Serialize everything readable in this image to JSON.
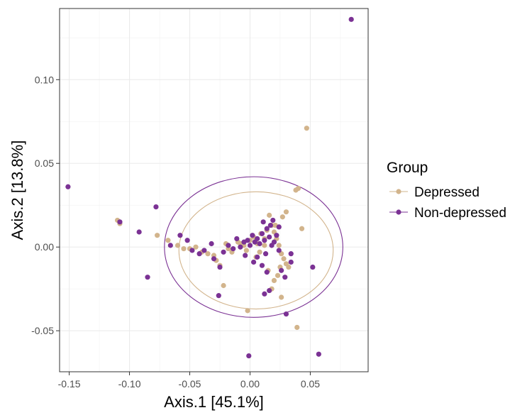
{
  "chart_data": {
    "type": "scatter",
    "xlabel": "Axis.1   [45.1%]",
    "ylabel": "Axis.2   [13.8%]",
    "xlim": [
      -0.158,
      0.098
    ],
    "ylim": [
      -0.0745,
      0.1425
    ],
    "x_ticks": [
      -0.15,
      -0.1,
      -0.05,
      0.0,
      0.05
    ],
    "x_tick_labels": [
      "-0.15",
      "-0.10",
      "-0.05",
      "0.00",
      "0.05"
    ],
    "y_ticks": [
      -0.05,
      0.0,
      0.05,
      0.1
    ],
    "y_tick_labels": [
      "-0.05",
      "0.00",
      "0.05",
      "0.10"
    ],
    "grid": true,
    "legend": {
      "title": "Group",
      "position": "right"
    },
    "series": [
      {
        "name": "Depressed",
        "color": "#D2B48C",
        "ellipse": {
          "cx": 0.005,
          "cy": -0.002,
          "rx": 0.064,
          "ry": 0.035
        },
        "points": [
          [
            0.047,
            0.071
          ],
          [
            0.04,
            0.035
          ],
          [
            0.038,
            0.034
          ],
          [
            0.043,
            0.011
          ],
          [
            0.039,
            -0.048
          ],
          [
            -0.002,
            -0.038
          ],
          [
            -0.11,
            0.016
          ],
          [
            -0.108,
            0.014
          ],
          [
            -0.077,
            0.007
          ],
          [
            -0.068,
            0.004
          ],
          [
            -0.06,
            0.001
          ],
          [
            -0.055,
            -0.001
          ],
          [
            -0.05,
            -0.001
          ],
          [
            -0.045,
            0.0
          ],
          [
            -0.04,
            -0.003
          ],
          [
            -0.035,
            -0.004
          ],
          [
            -0.03,
            -0.005
          ],
          [
            -0.028,
            -0.008
          ],
          [
            -0.025,
            -0.011
          ],
          [
            -0.022,
            -0.023
          ],
          [
            -0.02,
            0.002
          ],
          [
            -0.015,
            -0.003
          ],
          [
            -0.01,
            0.003
          ],
          [
            -0.005,
            0.001
          ],
          [
            0.0,
            0.004
          ],
          [
            0.003,
            0.006
          ],
          [
            0.006,
            0.002
          ],
          [
            0.009,
            0.008
          ],
          [
            0.012,
            0.005
          ],
          [
            0.014,
            0.01
          ],
          [
            0.016,
            0.019
          ],
          [
            0.018,
            0.013
          ],
          [
            0.02,
            0.009
          ],
          [
            0.022,
            0.005
          ],
          [
            0.024,
            0.001
          ],
          [
            0.026,
            -0.004
          ],
          [
            0.028,
            -0.007
          ],
          [
            0.03,
            -0.01
          ],
          [
            0.025,
            -0.012
          ],
          [
            0.023,
            -0.017
          ],
          [
            0.02,
            -0.02
          ],
          [
            0.018,
            -0.025
          ],
          [
            0.026,
            -0.03
          ],
          [
            0.021,
            0.013
          ],
          [
            0.03,
            0.021
          ],
          [
            0.027,
            0.018
          ],
          [
            0.032,
            -0.012
          ],
          [
            0.015,
            -0.014
          ],
          [
            0.012,
            0.001
          ],
          [
            -0.008,
            0.002
          ],
          [
            -0.018,
            -0.001
          ],
          [
            0.005,
            -0.006
          ],
          [
            0.008,
            -0.003
          ],
          [
            -0.003,
            -0.002
          ]
        ]
      },
      {
        "name": "Non-depressed",
        "color": "#7B3294",
        "ellipse": {
          "cx": 0.003,
          "cy": 0.0,
          "rx": 0.074,
          "ry": 0.042
        },
        "points": [
          [
            0.084,
            0.136
          ],
          [
            -0.151,
            0.036
          ],
          [
            0.057,
            -0.064
          ],
          [
            -0.001,
            -0.065
          ],
          [
            -0.078,
            0.024
          ],
          [
            -0.085,
            -0.018
          ],
          [
            -0.108,
            0.015
          ],
          [
            -0.092,
            0.009
          ],
          [
            -0.066,
            0.001
          ],
          [
            -0.058,
            0.007
          ],
          [
            -0.052,
            0.004
          ],
          [
            -0.048,
            -0.002
          ],
          [
            -0.042,
            -0.004
          ],
          [
            -0.038,
            -0.002
          ],
          [
            -0.032,
            0.002
          ],
          [
            -0.03,
            -0.007
          ],
          [
            -0.025,
            -0.012
          ],
          [
            -0.022,
            -0.003
          ],
          [
            -0.018,
            0.001
          ],
          [
            -0.014,
            -0.001
          ],
          [
            -0.011,
            0.005
          ],
          [
            -0.008,
            0.0
          ],
          [
            -0.005,
            0.003
          ],
          [
            -0.002,
            0.004
          ],
          [
            0.0,
            0.001
          ],
          [
            0.002,
            0.007
          ],
          [
            0.004,
            0.003
          ],
          [
            0.006,
            0.005
          ],
          [
            0.008,
            0.002
          ],
          [
            0.01,
            0.008
          ],
          [
            0.012,
            0.004
          ],
          [
            0.014,
            0.011
          ],
          [
            0.016,
            0.006
          ],
          [
            0.018,
            0.001
          ],
          [
            0.02,
            0.003
          ],
          [
            0.022,
            0.007
          ],
          [
            0.024,
            -0.002
          ],
          [
            0.026,
            -0.014
          ],
          [
            0.029,
            -0.018
          ],
          [
            0.034,
            -0.009
          ],
          [
            0.034,
            -0.004
          ],
          [
            0.052,
            -0.012
          ],
          [
            0.03,
            -0.04
          ],
          [
            0.016,
            -0.026
          ],
          [
            0.012,
            -0.028
          ],
          [
            -0.026,
            -0.029
          ],
          [
            0.014,
            -0.015
          ],
          [
            0.01,
            -0.011
          ],
          [
            0.006,
            -0.006
          ],
          [
            0.003,
            -0.009
          ],
          [
            -0.004,
            -0.005
          ],
          [
            0.013,
            -0.004
          ],
          [
            0.017,
            0.013
          ],
          [
            0.019,
            0.016
          ],
          [
            0.011,
            0.015
          ],
          [
            0.024,
            0.012
          ]
        ]
      }
    ]
  }
}
